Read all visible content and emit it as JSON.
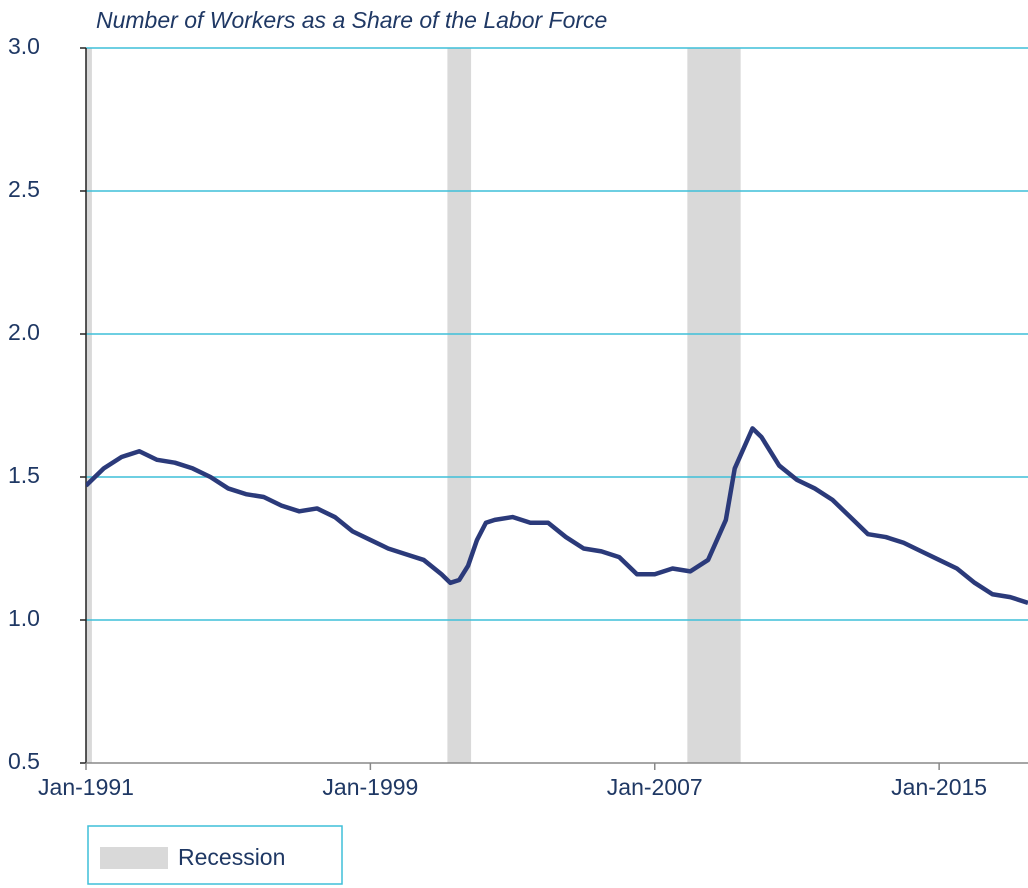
{
  "chart_data": {
    "type": "line",
    "title": "Number of Workers as a Share of the Labor Force",
    "x": [
      "1991-01",
      "1991-07",
      "1992-01",
      "1992-07",
      "1993-01",
      "1993-07",
      "1994-01",
      "1994-07",
      "1995-01",
      "1995-07",
      "1996-01",
      "1996-07",
      "1997-01",
      "1997-07",
      "1998-01",
      "1998-07",
      "1999-01",
      "1999-07",
      "2000-01",
      "2000-07",
      "2001-01",
      "2001-04",
      "2001-07",
      "2001-10",
      "2002-01",
      "2002-04",
      "2002-07",
      "2003-01",
      "2003-07",
      "2004-01",
      "2004-07",
      "2005-01",
      "2005-07",
      "2006-01",
      "2006-07",
      "2007-01",
      "2007-07",
      "2008-01",
      "2008-07",
      "2009-01",
      "2009-04",
      "2009-10",
      "2010-01",
      "2010-07",
      "2011-01",
      "2011-07",
      "2012-01",
      "2012-07",
      "2013-01",
      "2013-07",
      "2014-01",
      "2014-07",
      "2015-01",
      "2015-07",
      "2016-01",
      "2016-07",
      "2017-01",
      "2017-07"
    ],
    "series": [
      {
        "name": "Workers as a share of the labor force",
        "color": "#2b3a7a",
        "values": [
          1.47,
          1.53,
          1.57,
          1.59,
          1.56,
          1.55,
          1.53,
          1.5,
          1.46,
          1.44,
          1.43,
          1.4,
          1.38,
          1.39,
          1.36,
          1.31,
          1.28,
          1.25,
          1.23,
          1.21,
          1.16,
          1.13,
          1.14,
          1.19,
          1.28,
          1.34,
          1.35,
          1.36,
          1.34,
          1.34,
          1.29,
          1.25,
          1.24,
          1.22,
          1.16,
          1.16,
          1.18,
          1.17,
          1.21,
          1.35,
          1.53,
          1.67,
          1.64,
          1.54,
          1.49,
          1.46,
          1.42,
          1.36,
          1.3,
          1.29,
          1.27,
          1.24,
          1.21,
          1.18,
          1.13,
          1.09,
          1.08,
          1.06
        ]
      }
    ],
    "recessions": {
      "name": "Recession",
      "color": "#d9d9d9",
      "periods": [
        [
          "1990-07",
          "1991-03"
        ],
        [
          "2001-03",
          "2001-11"
        ],
        [
          "2007-12",
          "2009-06"
        ]
      ]
    },
    "xlim": [
      "1991-01",
      "2017-07"
    ],
    "xticks": [
      {
        "value": "1991-01",
        "label": "Jan-1991"
      },
      {
        "value": "1999-01",
        "label": "Jan-1999"
      },
      {
        "value": "2007-01",
        "label": "Jan-2007"
      },
      {
        "value": "2015-01",
        "label": "Jan-2015"
      }
    ],
    "ylim": [
      0.5,
      3.0
    ],
    "yticks": [
      {
        "value": 0.5,
        "label": "0.5"
      },
      {
        "value": 1.0,
        "label": "1.0"
      },
      {
        "value": 1.5,
        "label": "1.5"
      },
      {
        "value": 2.0,
        "label": "2.0"
      },
      {
        "value": 2.5,
        "label": "2.5"
      },
      {
        "value": 3.0,
        "label": "3.0"
      }
    ],
    "grid": true
  }
}
